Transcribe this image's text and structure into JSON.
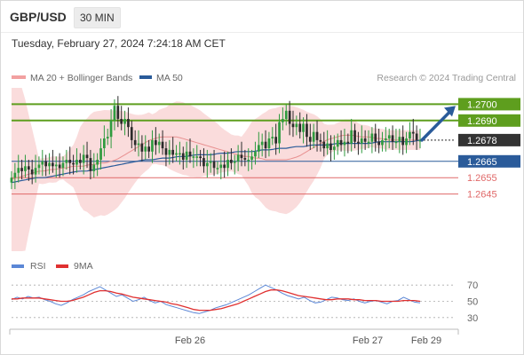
{
  "header": {
    "pair": "GBP/USD",
    "timeframe": "30 MIN",
    "datetime": "Tuesday, February 27, 2024 7:24:18 AM CET"
  },
  "legend": {
    "bollinger_label": "MA 20 + Bollinger Bands",
    "ma50_label": "MA 50",
    "source": "Research © 2024 Trading Central",
    "rsi_label": "RSI",
    "ma9_label": "9MA"
  },
  "colors": {
    "up": "#2f9b3f",
    "down": "#2b2b2b",
    "bollinger_fill": "#f9d6d6",
    "ma20": "#e89090",
    "ma50": "#2a5b9a",
    "resistance": "#5e9e1e",
    "support": "#2a5b9a",
    "target": "#e06868",
    "rsi": "#5b87d6",
    "rsi_ma": "#e03030",
    "arrow": "#2a5b9a"
  },
  "chart_data": [
    {
      "type": "candlestick",
      "ylim": [
        1.261,
        1.271
      ],
      "levels": [
        {
          "value": 1.27,
          "label": "1.2700",
          "kind": "resistance"
        },
        {
          "value": 1.269,
          "label": "1.2690",
          "kind": "resistance"
        },
        {
          "value": 1.2678,
          "label": "1.2678",
          "kind": "current"
        },
        {
          "value": 1.2665,
          "label": "1.2665",
          "kind": "pivot"
        },
        {
          "value": 1.2655,
          "label": "1.2655",
          "kind": "support"
        },
        {
          "value": 1.2645,
          "label": "1.2645",
          "kind": "support"
        }
      ],
      "x_ticks": [
        "Feb 26",
        "Feb 27",
        "Feb 29"
      ],
      "closes": [
        1.2655,
        1.2658,
        1.2661,
        1.2659,
        1.2662,
        1.266,
        1.2657,
        1.2661,
        1.2663,
        1.2665,
        1.2662,
        1.2664,
        1.2662,
        1.2663,
        1.2661,
        1.2664,
        1.2666,
        1.2664,
        1.2663,
        1.2666,
        1.2664,
        1.2669,
        1.2667,
        1.2659,
        1.2663,
        1.2666,
        1.2673,
        1.2679,
        1.268,
        1.269,
        1.2699,
        1.2691,
        1.2688,
        1.2691,
        1.2686,
        1.2678,
        1.2675,
        1.2676,
        1.2671,
        1.2674,
        1.2671,
        1.2678,
        1.2675,
        1.2677,
        1.2673,
        1.2669,
        1.2672,
        1.2669,
        1.267,
        1.267,
        1.2666,
        1.2671,
        1.2668,
        1.2668,
        1.2668,
        1.2667,
        1.2662,
        1.2664,
        1.2665,
        1.2661,
        1.2661,
        1.2663,
        1.2661,
        1.2666,
        1.2664,
        1.2665,
        1.2669,
        1.2667,
        1.2666,
        1.2666,
        1.2668,
        1.2671,
        1.2675,
        1.2677,
        1.2673,
        1.2679,
        1.268,
        1.2676,
        1.2689,
        1.2691,
        1.2696,
        1.2688,
        1.2686,
        1.2688,
        1.2683,
        1.2688,
        1.268,
        1.2677,
        1.2683,
        1.2678,
        1.2677,
        1.2673,
        1.2676,
        1.2672,
        1.2674,
        1.2678,
        1.2675,
        1.2677,
        1.2676,
        1.2684,
        1.2677,
        1.2676,
        1.2679,
        1.2677,
        1.2677,
        1.2682,
        1.2677,
        1.2675,
        1.2678,
        1.2679,
        1.2681,
        1.2677,
        1.2677,
        1.268,
        1.2675,
        1.2679,
        1.2683,
        1.2682,
        1.2678,
        1.2678
      ],
      "ma20": [
        1.2654,
        1.2655,
        1.2656,
        1.2657,
        1.2658,
        1.2659,
        1.2659,
        1.266,
        1.266,
        1.2661,
        1.2661,
        1.2662,
        1.2662,
        1.2662,
        1.2663,
        1.2663,
        1.2664,
        1.2664,
        1.2665,
        1.2666,
        1.2668,
        1.267,
        1.2672,
        1.2674,
        1.2676,
        1.2678,
        1.2679,
        1.268,
        1.268,
        1.268,
        1.268,
        1.2679,
        1.2678,
        1.2677,
        1.2676,
        1.2675,
        1.2674,
        1.2673,
        1.2672,
        1.2671,
        1.267,
        1.2669,
        1.2668,
        1.2668,
        1.2667,
        1.2667,
        1.2666,
        1.2666,
        1.2666,
        1.2666,
        1.2666,
        1.2667,
        1.2668,
        1.267,
        1.2672,
        1.2674,
        1.2676,
        1.2678,
        1.2679,
        1.268,
        1.2681,
        1.2681,
        1.2681,
        1.268,
        1.268,
        1.268,
        1.2679,
        1.2679,
        1.2678,
        1.2678,
        1.2678,
        1.2678,
        1.2678,
        1.2678,
        1.2678
      ],
      "ma50": [
        1.2652,
        1.2653,
        1.2654,
        1.2655,
        1.2655,
        1.2656,
        1.2657,
        1.2658,
        1.2659,
        1.2659,
        1.266,
        1.2661,
        1.2662,
        1.2663,
        1.2664,
        1.2665,
        1.2666,
        1.2666,
        1.2667,
        1.2667,
        1.2668,
        1.2668,
        1.2669,
        1.2669,
        1.2669,
        1.267,
        1.267,
        1.2671,
        1.2671,
        1.2671,
        1.2672,
        1.2672,
        1.2673,
        1.2673,
        1.2674,
        1.2674,
        1.2675,
        1.2675,
        1.2675,
        1.2676,
        1.2676,
        1.2676,
        1.2676,
        1.2676,
        1.2677,
        1.2677,
        1.2677,
        1.2677,
        1.2677,
        1.2678
      ],
      "projection": {
        "from": 1.2678,
        "to": 1.27
      }
    },
    {
      "type": "line",
      "ylim": [
        20,
        80
      ],
      "y_ticks": [
        70,
        50,
        30
      ],
      "series": [
        {
          "name": "RSI",
          "values": [
            52,
            55,
            53,
            56,
            54,
            55,
            52,
            50,
            47,
            45,
            48,
            52,
            55,
            58,
            62,
            65,
            68,
            64,
            60,
            56,
            58,
            54,
            50,
            52,
            55,
            51,
            48,
            50,
            46,
            44,
            42,
            40,
            38,
            36,
            35,
            37,
            39,
            42,
            44,
            46,
            49,
            52,
            55,
            58,
            62,
            66,
            70,
            67,
            64,
            60,
            57,
            55,
            53,
            55,
            51,
            48,
            49,
            52,
            55,
            54,
            52,
            51,
            53,
            50,
            48,
            50,
            51,
            49,
            47,
            50,
            51,
            55,
            52,
            49,
            48
          ]
        },
        {
          "name": "9MA",
          "values": [
            53,
            53,
            54,
            54,
            54,
            54,
            53,
            52,
            51,
            50,
            50,
            51,
            53,
            55,
            58,
            61,
            63,
            63,
            62,
            60,
            59,
            57,
            55,
            54,
            53,
            52,
            51,
            50,
            49,
            47,
            46,
            44,
            42,
            40,
            39,
            39,
            39,
            40,
            41,
            43,
            45,
            47,
            50,
            53,
            56,
            59,
            62,
            64,
            64,
            63,
            61,
            59,
            57,
            56,
            55,
            54,
            53,
            52,
            52,
            53,
            53,
            53,
            52,
            52,
            51,
            51,
            51,
            50,
            50,
            50,
            50,
            51,
            51,
            51,
            50
          ]
        }
      ]
    }
  ]
}
